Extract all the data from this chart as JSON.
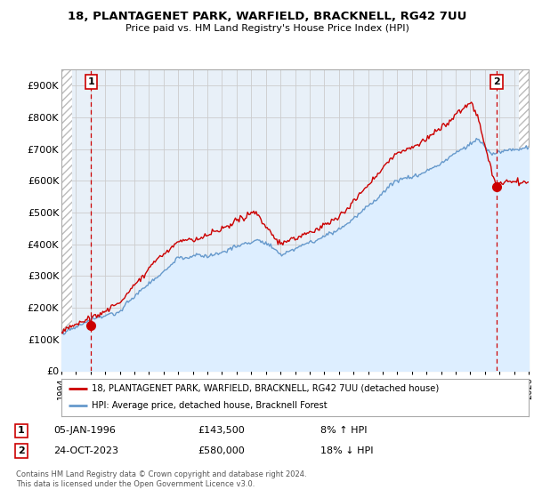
{
  "title1": "18, PLANTAGENET PARK, WARFIELD, BRACKNELL, RG42 7UU",
  "title2": "Price paid vs. HM Land Registry's House Price Index (HPI)",
  "xlim": [
    1994.0,
    2026.0
  ],
  "ylim": [
    0,
    950000
  ],
  "yticks": [
    0,
    100000,
    200000,
    300000,
    400000,
    500000,
    600000,
    700000,
    800000,
    900000
  ],
  "ytick_labels": [
    "£0",
    "£100K",
    "£200K",
    "£300K",
    "£400K",
    "£500K",
    "£600K",
    "£700K",
    "£800K",
    "£900K"
  ],
  "sale1_x": 1996.03,
  "sale1_y": 143500,
  "sale2_x": 2023.81,
  "sale2_y": 580000,
  "sale1_date": "05-JAN-1996",
  "sale1_price": "£143,500",
  "sale1_hpi": "8% ↑ HPI",
  "sale2_date": "24-OCT-2023",
  "sale2_price": "£580,000",
  "sale2_hpi": "18% ↓ HPI",
  "line_color_red": "#cc0000",
  "line_color_blue": "#6699cc",
  "fill_color_blue": "#ddeeff",
  "plot_bg": "#e8f0f8",
  "legend_label1": "18, PLANTAGENET PARK, WARFIELD, BRACKNELL, RG42 7UU (detached house)",
  "legend_label2": "HPI: Average price, detached house, Bracknell Forest",
  "footer": "Contains HM Land Registry data © Crown copyright and database right 2024.\nThis data is licensed under the Open Government Licence v3.0."
}
